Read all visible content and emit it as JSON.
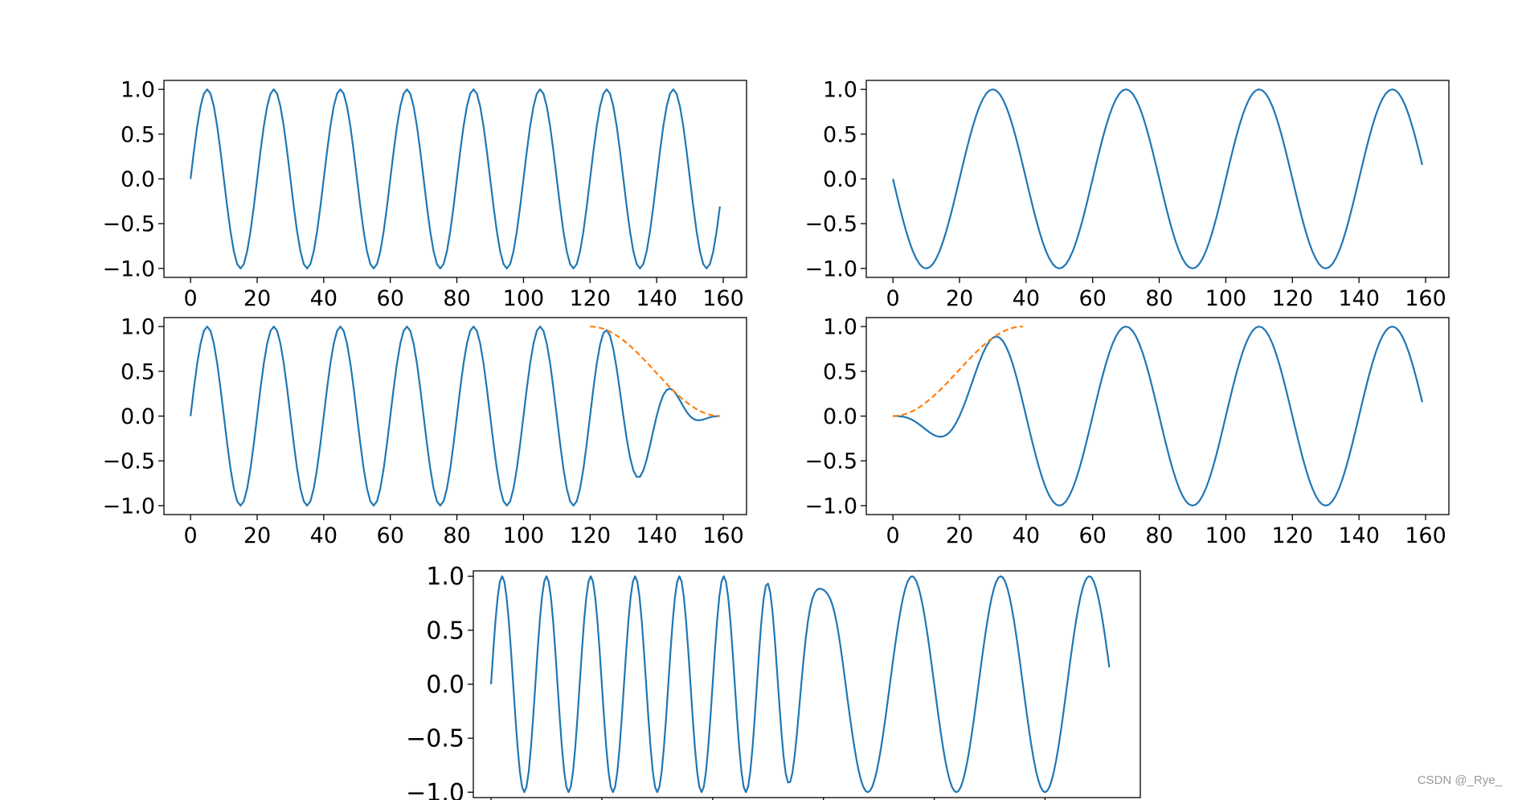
{
  "figure": {
    "watermark": "CSDN @_Rye_",
    "colors": {
      "signal": "#1f77b4",
      "window": "#ff7f0e",
      "axes": "#000000",
      "background": "#ffffff"
    }
  },
  "chart_data": [
    {
      "type": "line",
      "title": "",
      "xlabel": "",
      "ylabel": "",
      "xlim": [
        -8,
        167
      ],
      "ylim": [
        -1.1,
        1.1
      ],
      "xticks": [
        0,
        20,
        40,
        60,
        80,
        100,
        120,
        140,
        160
      ],
      "yticks": [
        1.0,
        0.5,
        0.0,
        -0.5,
        -1.0
      ],
      "ytick_labels": [
        "1.0",
        "0.5",
        "0.0",
        "−0.5",
        "−1.0"
      ],
      "series": [
        {
          "formula": "sin(2*pi*x/20)",
          "x_range": [
            0,
            159
          ],
          "values_sample": [
            0.0,
            1.0,
            0.0,
            -1.0,
            0.0,
            1.0
          ],
          "color": "#1f77b4",
          "style": "solid"
        }
      ]
    },
    {
      "type": "line",
      "title": "",
      "xlabel": "",
      "ylabel": "",
      "xlim": [
        -8,
        167
      ],
      "ylim": [
        -1.1,
        1.1
      ],
      "xticks": [
        0,
        20,
        40,
        60,
        80,
        100,
        120,
        140,
        160
      ],
      "yticks": [
        1.0,
        0.5,
        0.0,
        -0.5,
        -1.0
      ],
      "ytick_labels": [
        "1.0",
        "0.5",
        "0.0",
        "−0.5",
        "−1.0"
      ],
      "series": [
        {
          "formula": "-sin(2*pi*x/40)",
          "x_range": [
            0,
            159
          ],
          "values_sample": [
            0.0,
            -1.0,
            0.0,
            1.0,
            0.0
          ],
          "color": "#1f77b4",
          "style": "solid"
        }
      ]
    },
    {
      "type": "line",
      "title": "",
      "xlabel": "",
      "ylabel": "",
      "xlim": [
        -8,
        167
      ],
      "ylim": [
        -1.1,
        1.1
      ],
      "xticks": [
        0,
        20,
        40,
        60,
        80,
        100,
        120,
        140,
        160
      ],
      "yticks": [
        1.0,
        0.5,
        0.0,
        -0.5,
        -1.0
      ],
      "ytick_labels": [
        "1.0",
        "0.5",
        "0.0",
        "−0.5",
        "−1.0"
      ],
      "series": [
        {
          "formula": "sin(2*pi*x/20) * fade-out window over 120..159",
          "x_range": [
            0,
            159
          ],
          "values_sample": [
            0.0,
            1.0,
            -1.0,
            0.95,
            -0.65,
            0.3,
            0.0
          ],
          "color": "#1f77b4",
          "style": "solid"
        },
        {
          "formula": "cos^2 fade-out window",
          "x_range": [
            120,
            159
          ],
          "values_sample": [
            1.0,
            0.5,
            0.0
          ],
          "color": "#ff7f0e",
          "style": "dashed"
        }
      ]
    },
    {
      "type": "line",
      "title": "",
      "xlabel": "",
      "ylabel": "",
      "xlim": [
        -8,
        167
      ],
      "ylim": [
        -1.1,
        1.1
      ],
      "xticks": [
        0,
        20,
        40,
        60,
        80,
        100,
        120,
        140,
        160
      ],
      "yticks": [
        1.0,
        0.5,
        0.0,
        -0.5,
        -1.0
      ],
      "ytick_labels": [
        "1.0",
        "0.5",
        "0.0",
        "−0.5",
        "−1.0"
      ],
      "series": [
        {
          "formula": "-sin(2*pi*x/40) * fade-in window over 0..39",
          "x_range": [
            0,
            159
          ],
          "values_sample": [
            0.0,
            -0.22,
            0.88,
            -1.0,
            1.0
          ],
          "color": "#1f77b4",
          "style": "solid"
        },
        {
          "formula": "sin^2 fade-in window",
          "x_range": [
            0,
            39
          ],
          "values_sample": [
            0.0,
            0.5,
            1.0
          ],
          "color": "#ff7f0e",
          "style": "dashed"
        }
      ]
    },
    {
      "type": "line",
      "title": "",
      "xlabel": "",
      "ylabel": "",
      "xlim": [
        -8,
        293
      ],
      "ylim": [
        -1.05,
        1.05
      ],
      "xticks": [
        0,
        50,
        100,
        150,
        200,
        250
      ],
      "xtick_labels_visible": false,
      "yticks": [
        1.0,
        0.5,
        0.0,
        -0.5,
        -1.0
      ],
      "ytick_labels": [
        "1.0",
        "0.5",
        "0.0",
        "−0.5",
        "−1.0"
      ],
      "series": [
        {
          "formula": "crossfade: sin(2*pi*x/20) for x<120, blended 120..159, -sin(2*pi*(x-120)/40) after",
          "x_range": [
            0,
            279
          ],
          "values_sample": [
            0.0,
            1.0,
            -1.0,
            0.88,
            -1.0,
            1.0,
            0.15
          ],
          "color": "#1f77b4",
          "style": "solid"
        }
      ]
    }
  ]
}
